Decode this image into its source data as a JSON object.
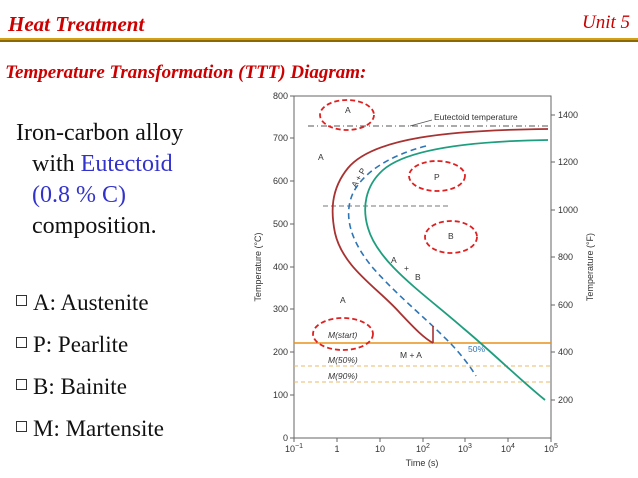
{
  "header": {
    "title": "Heat Treatment",
    "unit": "Unit 5"
  },
  "subtitle": "e Temperature Transformation (TTT) Diagram:",
  "intro": {
    "line1": "Iron-carbon alloy",
    "line2_prefix": "with ",
    "line2_highlight": "Eutectoid",
    "line3": "(0.8 % C)",
    "line4": "composition."
  },
  "bullets": [
    "A: Austenite",
    "P: Pearlite",
    "B: Bainite",
    "M: Martensite"
  ],
  "diagram": {
    "y_axis_left": {
      "label": "Temperature (°C)",
      "ticks": [
        "0",
        "100",
        "200",
        "300",
        "400",
        "500",
        "600",
        "700",
        "800"
      ]
    },
    "y_axis_right": {
      "label": "Temperature (°F)",
      "ticks": [
        "200",
        "400",
        "600",
        "800",
        "1000",
        "1200",
        "1400"
      ]
    },
    "x_axis": {
      "label": "Time (s)",
      "ticks": [
        {
          "base": "10",
          "exp": "−1"
        },
        {
          "base": "1",
          "exp": ""
        },
        {
          "base": "10",
          "exp": ""
        },
        {
          "base": "10",
          "exp": "2"
        },
        {
          "base": "10",
          "exp": "3"
        },
        {
          "base": "10",
          "exp": "4"
        },
        {
          "base": "10",
          "exp": "5"
        }
      ]
    },
    "labels": {
      "eutectoid": "Eutectoid temperature",
      "a_top": "A",
      "a_left": "A",
      "a_bottom": "A",
      "p": "P",
      "b": "B",
      "a_plus_p": "A + P",
      "a_plus_b_a": "A",
      "a_plus_b_plus": "+",
      "a_plus_b_b": "B",
      "m_plus_a": "M + A",
      "fifty_pct": "50%",
      "m_start": "M(start)",
      "m_50": "M(50%)",
      "m_90": "M(90%)"
    },
    "colors": {
      "start_curve": "#a83232",
      "fifty_curve": "#2e75b6",
      "finish_curve": "#1e9e7e",
      "m_start_line": "#e8901a",
      "markers": "#e02020"
    }
  }
}
